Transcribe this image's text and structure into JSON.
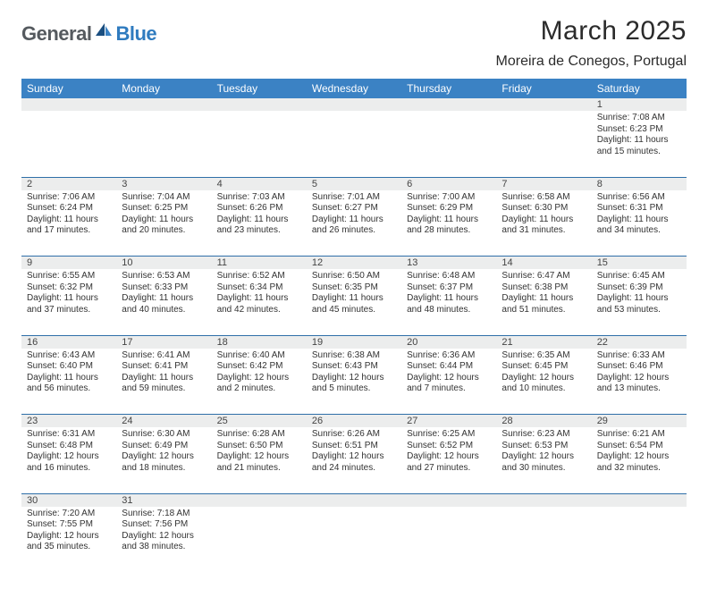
{
  "logo": {
    "text1": "General",
    "text2": "Blue"
  },
  "title": "March 2025",
  "location": "Moreira de Conegos, Portugal",
  "colors": {
    "header_bg": "#3b82c4",
    "header_text": "#ffffff",
    "daynum_bg": "#eceded",
    "row_border": "#2f6fa8",
    "body_text": "#333333",
    "logo_gray": "#555a5f",
    "logo_blue": "#2f7bbf"
  },
  "weekdays": [
    "Sunday",
    "Monday",
    "Tuesday",
    "Wednesday",
    "Thursday",
    "Friday",
    "Saturday"
  ],
  "weeks": [
    [
      null,
      null,
      null,
      null,
      null,
      null,
      {
        "n": "1",
        "sr": "Sunrise: 7:08 AM",
        "ss": "Sunset: 6:23 PM",
        "dl": "Daylight: 11 hours and 15 minutes."
      }
    ],
    [
      {
        "n": "2",
        "sr": "Sunrise: 7:06 AM",
        "ss": "Sunset: 6:24 PM",
        "dl": "Daylight: 11 hours and 17 minutes."
      },
      {
        "n": "3",
        "sr": "Sunrise: 7:04 AM",
        "ss": "Sunset: 6:25 PM",
        "dl": "Daylight: 11 hours and 20 minutes."
      },
      {
        "n": "4",
        "sr": "Sunrise: 7:03 AM",
        "ss": "Sunset: 6:26 PM",
        "dl": "Daylight: 11 hours and 23 minutes."
      },
      {
        "n": "5",
        "sr": "Sunrise: 7:01 AM",
        "ss": "Sunset: 6:27 PM",
        "dl": "Daylight: 11 hours and 26 minutes."
      },
      {
        "n": "6",
        "sr": "Sunrise: 7:00 AM",
        "ss": "Sunset: 6:29 PM",
        "dl": "Daylight: 11 hours and 28 minutes."
      },
      {
        "n": "7",
        "sr": "Sunrise: 6:58 AM",
        "ss": "Sunset: 6:30 PM",
        "dl": "Daylight: 11 hours and 31 minutes."
      },
      {
        "n": "8",
        "sr": "Sunrise: 6:56 AM",
        "ss": "Sunset: 6:31 PM",
        "dl": "Daylight: 11 hours and 34 minutes."
      }
    ],
    [
      {
        "n": "9",
        "sr": "Sunrise: 6:55 AM",
        "ss": "Sunset: 6:32 PM",
        "dl": "Daylight: 11 hours and 37 minutes."
      },
      {
        "n": "10",
        "sr": "Sunrise: 6:53 AM",
        "ss": "Sunset: 6:33 PM",
        "dl": "Daylight: 11 hours and 40 minutes."
      },
      {
        "n": "11",
        "sr": "Sunrise: 6:52 AM",
        "ss": "Sunset: 6:34 PM",
        "dl": "Daylight: 11 hours and 42 minutes."
      },
      {
        "n": "12",
        "sr": "Sunrise: 6:50 AM",
        "ss": "Sunset: 6:35 PM",
        "dl": "Daylight: 11 hours and 45 minutes."
      },
      {
        "n": "13",
        "sr": "Sunrise: 6:48 AM",
        "ss": "Sunset: 6:37 PM",
        "dl": "Daylight: 11 hours and 48 minutes."
      },
      {
        "n": "14",
        "sr": "Sunrise: 6:47 AM",
        "ss": "Sunset: 6:38 PM",
        "dl": "Daylight: 11 hours and 51 minutes."
      },
      {
        "n": "15",
        "sr": "Sunrise: 6:45 AM",
        "ss": "Sunset: 6:39 PM",
        "dl": "Daylight: 11 hours and 53 minutes."
      }
    ],
    [
      {
        "n": "16",
        "sr": "Sunrise: 6:43 AM",
        "ss": "Sunset: 6:40 PM",
        "dl": "Daylight: 11 hours and 56 minutes."
      },
      {
        "n": "17",
        "sr": "Sunrise: 6:41 AM",
        "ss": "Sunset: 6:41 PM",
        "dl": "Daylight: 11 hours and 59 minutes."
      },
      {
        "n": "18",
        "sr": "Sunrise: 6:40 AM",
        "ss": "Sunset: 6:42 PM",
        "dl": "Daylight: 12 hours and 2 minutes."
      },
      {
        "n": "19",
        "sr": "Sunrise: 6:38 AM",
        "ss": "Sunset: 6:43 PM",
        "dl": "Daylight: 12 hours and 5 minutes."
      },
      {
        "n": "20",
        "sr": "Sunrise: 6:36 AM",
        "ss": "Sunset: 6:44 PM",
        "dl": "Daylight: 12 hours and 7 minutes."
      },
      {
        "n": "21",
        "sr": "Sunrise: 6:35 AM",
        "ss": "Sunset: 6:45 PM",
        "dl": "Daylight: 12 hours and 10 minutes."
      },
      {
        "n": "22",
        "sr": "Sunrise: 6:33 AM",
        "ss": "Sunset: 6:46 PM",
        "dl": "Daylight: 12 hours and 13 minutes."
      }
    ],
    [
      {
        "n": "23",
        "sr": "Sunrise: 6:31 AM",
        "ss": "Sunset: 6:48 PM",
        "dl": "Daylight: 12 hours and 16 minutes."
      },
      {
        "n": "24",
        "sr": "Sunrise: 6:30 AM",
        "ss": "Sunset: 6:49 PM",
        "dl": "Daylight: 12 hours and 18 minutes."
      },
      {
        "n": "25",
        "sr": "Sunrise: 6:28 AM",
        "ss": "Sunset: 6:50 PM",
        "dl": "Daylight: 12 hours and 21 minutes."
      },
      {
        "n": "26",
        "sr": "Sunrise: 6:26 AM",
        "ss": "Sunset: 6:51 PM",
        "dl": "Daylight: 12 hours and 24 minutes."
      },
      {
        "n": "27",
        "sr": "Sunrise: 6:25 AM",
        "ss": "Sunset: 6:52 PM",
        "dl": "Daylight: 12 hours and 27 minutes."
      },
      {
        "n": "28",
        "sr": "Sunrise: 6:23 AM",
        "ss": "Sunset: 6:53 PM",
        "dl": "Daylight: 12 hours and 30 minutes."
      },
      {
        "n": "29",
        "sr": "Sunrise: 6:21 AM",
        "ss": "Sunset: 6:54 PM",
        "dl": "Daylight: 12 hours and 32 minutes."
      }
    ],
    [
      {
        "n": "30",
        "sr": "Sunrise: 7:20 AM",
        "ss": "Sunset: 7:55 PM",
        "dl": "Daylight: 12 hours and 35 minutes."
      },
      {
        "n": "31",
        "sr": "Sunrise: 7:18 AM",
        "ss": "Sunset: 7:56 PM",
        "dl": "Daylight: 12 hours and 38 minutes."
      },
      null,
      null,
      null,
      null,
      null
    ]
  ]
}
